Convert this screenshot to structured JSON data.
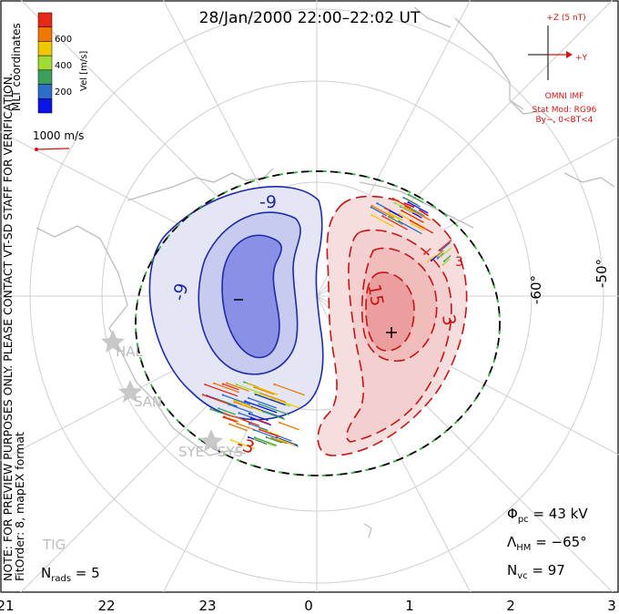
{
  "title": "28/Jan/2000 22:00–22:02 UT",
  "imf": {
    "z_label": "+Z (5 nT)",
    "y_label": "+Y",
    "source": "OMNI IMF",
    "model": "Stat Mod: RG96",
    "condition": "By−, 0<BT<4"
  },
  "colorbar": {
    "title": "Vel [m/s]",
    "coord_label": "MLT coordinates",
    "ticks": [
      "200",
      "400",
      "600"
    ],
    "colors": [
      "#0a14e6",
      "#2d6ec8",
      "#3ca05a",
      "#a0dc32",
      "#f0c800",
      "#f07800",
      "#e62814"
    ]
  },
  "scale_vector": "1000 m/s",
  "watermark": "NOTE: FOR PREVIEW PURPOSES ONLY. PLEASE CONTACT VT-SD STAFF FOR VERIFICATION.",
  "fit_note": "FitOrder: 8, mapEX format",
  "stats": {
    "phi_pc": "Φpc = 43 kV",
    "phi_sym": "Φ",
    "phi_sub": "pc",
    "phi_val": " = 43 kV",
    "lambda_sym": "Λ",
    "lambda_sub": "HM",
    "lambda_val": " = −65°",
    "n_vc_sym": "N",
    "n_vc_sub": "vc",
    "n_vc_val": " = 97",
    "n_rads_sym": "N",
    "n_rads_sub": "rads",
    "n_rads_val": " = 5"
  },
  "lat_labels": [
    "-60°",
    "-50°"
  ],
  "stations": [
    "HAL",
    "SAN",
    "SYE",
    "SYS",
    "TIG"
  ],
  "chart_data": {
    "type": "polar convection map",
    "x_ticks_mlt": [
      "21",
      "22",
      "23",
      "0",
      "1",
      "2",
      "3"
    ],
    "contour_labels": [
      "-9",
      "-9",
      "-3",
      "15",
      "3",
      "3",
      "3"
    ],
    "potential_min_label": "−",
    "potential_max_label": "+",
    "colors": {
      "negative": "#1e2aa8",
      "positive": "#c81414",
      "boundary_dash": "#3cb43c"
    }
  }
}
